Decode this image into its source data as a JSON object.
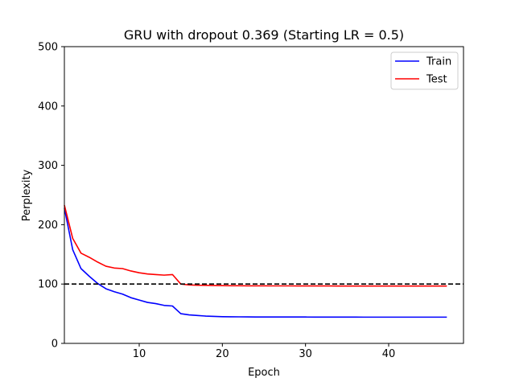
{
  "chart_data": {
    "type": "line",
    "title": "GRU with dropout 0.369 (Starting LR = 0.5)",
    "xlabel": "Epoch",
    "ylabel": "Perplexity",
    "xlim": [
      1,
      49
    ],
    "ylim": [
      0,
      500
    ],
    "xticks": [
      10,
      20,
      30,
      40
    ],
    "yticks": [
      0,
      100,
      200,
      300,
      400,
      500
    ],
    "grid": false,
    "legend_position": "top-right",
    "series": [
      {
        "name": "Train",
        "color": "#0000ff",
        "x": [
          1,
          2,
          3,
          4,
          5,
          6,
          7,
          8,
          9,
          10,
          11,
          12,
          13,
          14,
          15,
          16,
          17,
          18,
          19,
          20,
          21,
          22,
          23,
          24,
          25,
          26,
          27,
          28,
          29,
          30,
          31,
          32,
          33,
          34,
          35,
          36,
          37,
          38,
          39,
          40,
          41,
          42,
          43,
          44,
          45,
          46,
          47
        ],
        "y": [
          228,
          158,
          126,
          113,
          101,
          92,
          87,
          83,
          77,
          73,
          69,
          67,
          64,
          63,
          50,
          48,
          47,
          46,
          45.5,
          45,
          44.8,
          44.7,
          44.6,
          44.5,
          44.5,
          44.5,
          44.4,
          44.4,
          44.4,
          44.4,
          44.3,
          44.3,
          44.3,
          44.3,
          44.3,
          44.3,
          44.2,
          44.2,
          44.2,
          44.2,
          44.2,
          44.2,
          44.2,
          44.2,
          44.2,
          44.2,
          44.2
        ]
      },
      {
        "name": "Test",
        "color": "#ff0000",
        "x": [
          1,
          2,
          3,
          4,
          5,
          6,
          7,
          8,
          9,
          10,
          11,
          12,
          13,
          14,
          15,
          16,
          17,
          18,
          19,
          20,
          21,
          22,
          23,
          24,
          25,
          26,
          27,
          28,
          29,
          30,
          31,
          32,
          33,
          34,
          35,
          36,
          37,
          38,
          39,
          40,
          41,
          42,
          43,
          44,
          45,
          46,
          47
        ],
        "y": [
          233,
          177,
          152,
          145,
          137,
          130,
          127,
          126,
          122,
          119,
          117,
          116,
          115,
          116,
          100,
          98.5,
          98,
          97.8,
          97.5,
          97.3,
          97.2,
          97.1,
          97,
          97,
          97,
          96.9,
          96.9,
          96.9,
          96.8,
          96.8,
          96.8,
          96.8,
          96.8,
          96.7,
          96.7,
          96.7,
          96.7,
          96.7,
          96.7,
          96.7,
          96.7,
          96.7,
          96.7,
          96.7,
          96.7,
          96.7,
          96.7
        ]
      }
    ],
    "reference_lines": [
      {
        "orientation": "horizontal",
        "y": 100,
        "style": "dashed",
        "color": "#000000"
      }
    ]
  }
}
